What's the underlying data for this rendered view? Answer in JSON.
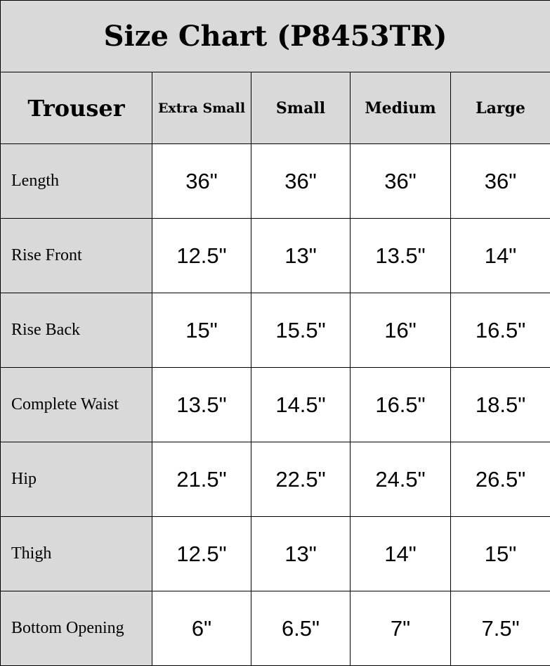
{
  "title": "Size Chart (P8453TR)",
  "colors": {
    "header_bg": "#d9d9d9",
    "cell_bg": "#ffffff",
    "border": "#000000"
  },
  "columns": [
    "Trouser",
    "Extra Small",
    "Small",
    "Medium",
    "Large"
  ],
  "rows": [
    {
      "label": "Length",
      "values": [
        "36\"",
        "36\"",
        "36\"",
        "36\""
      ]
    },
    {
      "label": "Rise Front",
      "values": [
        "12.5\"",
        "13\"",
        "13.5\"",
        "14\""
      ]
    },
    {
      "label": "Rise Back",
      "values": [
        "15\"",
        "15.5\"",
        "16\"",
        "16.5\""
      ]
    },
    {
      "label": "Complete Waist",
      "values": [
        "13.5\"",
        "14.5\"",
        "16.5\"",
        "18.5\""
      ]
    },
    {
      "label": "Hip",
      "values": [
        "21.5\"",
        "22.5\"",
        "24.5\"",
        "26.5\""
      ]
    },
    {
      "label": "Thigh",
      "values": [
        "12.5\"",
        "13\"",
        "14\"",
        "15\""
      ]
    },
    {
      "label": "Bottom Opening",
      "values": [
        "6\"",
        "6.5\"",
        "7\"",
        "7.5\""
      ]
    }
  ]
}
